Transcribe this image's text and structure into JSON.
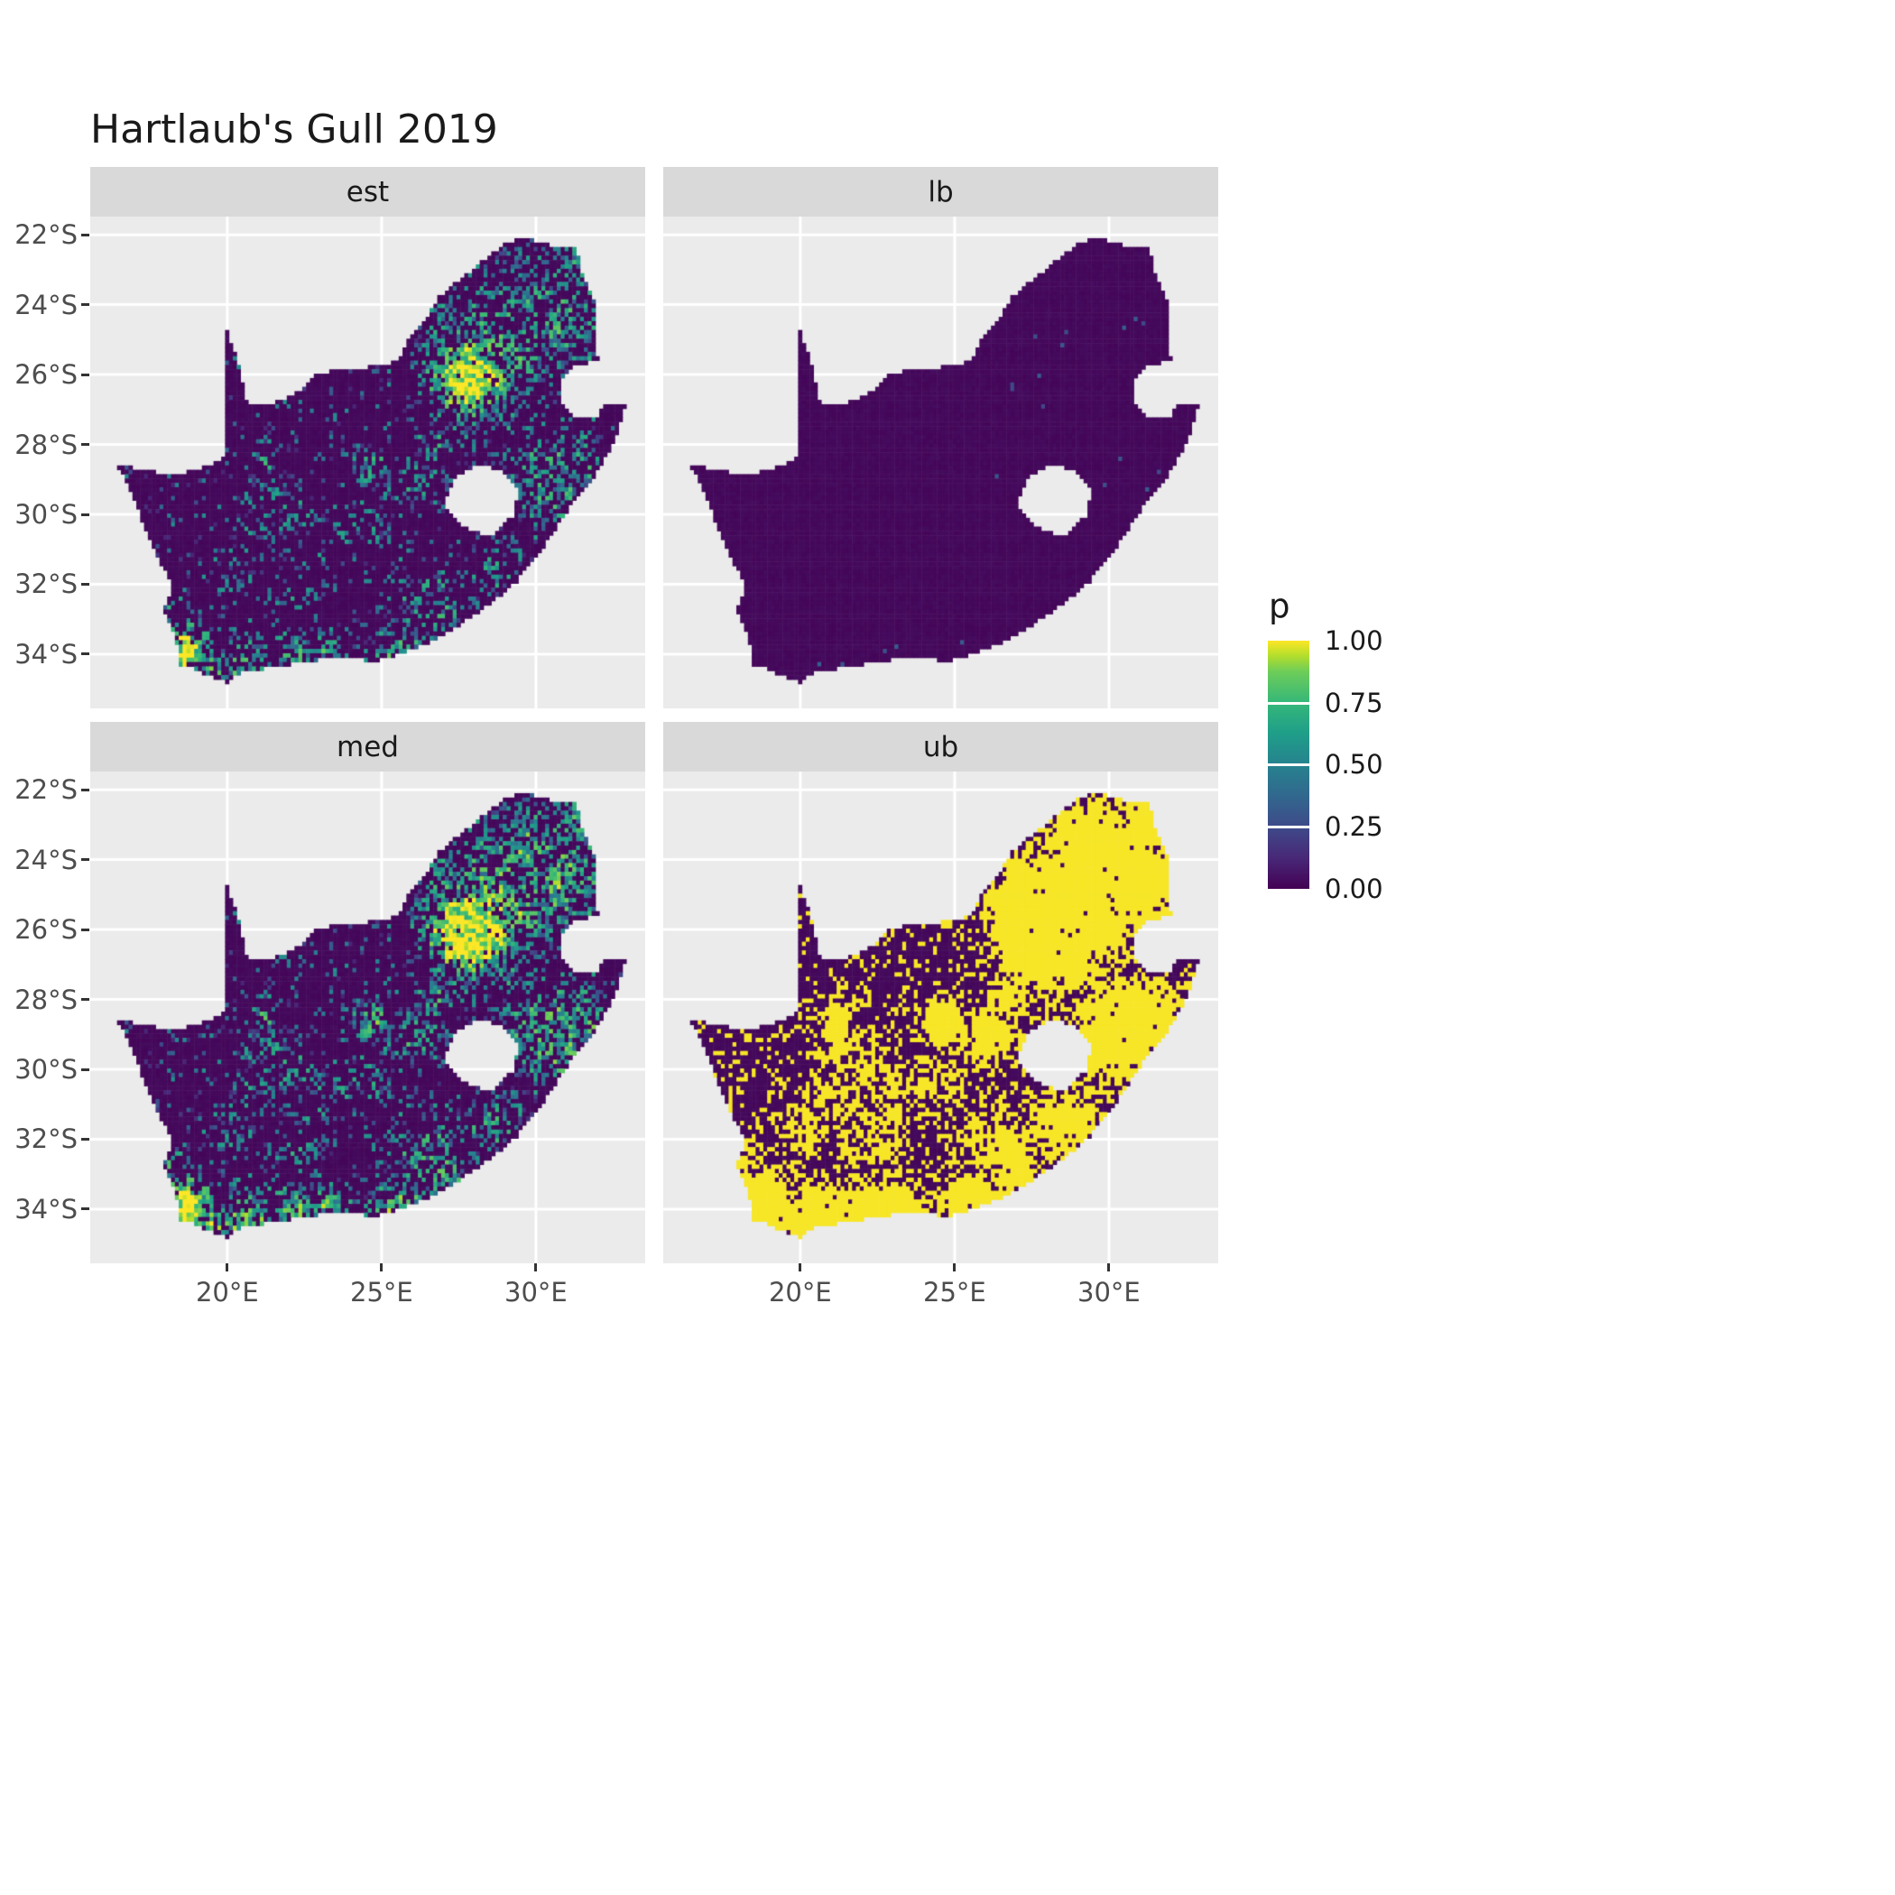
{
  "title": "Hartlaub's Gull 2019",
  "chart_data": {
    "type": "heatmap",
    "title": "Hartlaub's Gull 2019",
    "description": "Faceted raster maps of South Africa showing occupancy probability p (viridis scale) for four statistics: estimate, lower bound, median, upper bound.",
    "facets": [
      "est",
      "lb",
      "med",
      "ub"
    ],
    "legend": {
      "title": "p",
      "ticks": [
        "1.00",
        "0.75",
        "0.50",
        "0.25",
        "0.00"
      ],
      "tick_values": [
        1.0,
        0.75,
        0.5,
        0.25,
        0.0
      ]
    },
    "x_axis": {
      "ticks": [
        "20°E",
        "25°E",
        "30°E"
      ],
      "values": [
        20,
        25,
        30
      ],
      "range": [
        15.56,
        33.54
      ]
    },
    "y_axis": {
      "ticks": [
        "22°S",
        "24°S",
        "26°S",
        "28°S",
        "30°S",
        "32°S",
        "34°S"
      ],
      "values": [
        -22,
        -24,
        -26,
        -28,
        -30,
        -32,
        -34
      ],
      "range": [
        -35.55,
        -21.48
      ]
    },
    "colors": {
      "panel_bg": "#EBEBEB",
      "strip_bg": "#D9D9D9",
      "grid": "#FFFFFF",
      "axis_text": "#4D4D4D",
      "viridis": [
        [
          0,
          "#440154"
        ],
        [
          0.125,
          "#482878"
        ],
        [
          0.25,
          "#3E4A89"
        ],
        [
          0.375,
          "#31688E"
        ],
        [
          0.5,
          "#26828E"
        ],
        [
          0.625,
          "#1F9E89"
        ],
        [
          0.75,
          "#35B779"
        ],
        [
          0.875,
          "#6DCD59"
        ],
        [
          0.94,
          "#B4DE2C"
        ],
        [
          1,
          "#FDE725"
        ]
      ]
    },
    "region": {
      "name": "South Africa",
      "outline": [
        [
          16.45,
          -28.6
        ],
        [
          17.6,
          -28.78
        ],
        [
          18.3,
          -28.88
        ],
        [
          19.1,
          -28.72
        ],
        [
          19.7,
          -28.5
        ],
        [
          19.99,
          -28.32
        ],
        [
          19.99,
          -24.77
        ],
        [
          20.28,
          -25.45
        ],
        [
          20.48,
          -26.1
        ],
        [
          20.64,
          -26.82
        ],
        [
          21.45,
          -26.85
        ],
        [
          22.15,
          -26.6
        ],
        [
          22.9,
          -26.0
        ],
        [
          23.75,
          -25.85
        ],
        [
          24.7,
          -25.78
        ],
        [
          25.55,
          -25.62
        ],
        [
          25.95,
          -24.9
        ],
        [
          26.5,
          -24.3
        ],
        [
          26.9,
          -23.75
        ],
        [
          27.65,
          -23.2
        ],
        [
          28.35,
          -22.72
        ],
        [
          29.1,
          -22.18
        ],
        [
          29.75,
          -22.13
        ],
        [
          30.45,
          -22.3
        ],
        [
          31.3,
          -22.4
        ],
        [
          31.55,
          -23.25
        ],
        [
          31.9,
          -23.95
        ],
        [
          31.99,
          -24.65
        ],
        [
          31.95,
          -25.35
        ],
        [
          32.06,
          -25.63
        ],
        [
          31.25,
          -25.72
        ],
        [
          30.86,
          -26.15
        ],
        [
          30.82,
          -26.85
        ],
        [
          31.2,
          -27.22
        ],
        [
          31.97,
          -27.3
        ],
        [
          32.18,
          -26.86
        ],
        [
          32.9,
          -26.86
        ],
        [
          32.55,
          -27.95
        ],
        [
          31.85,
          -28.95
        ],
        [
          31.05,
          -29.87
        ],
        [
          30.25,
          -30.95
        ],
        [
          29.4,
          -31.9
        ],
        [
          28.45,
          -32.62
        ],
        [
          27.45,
          -33.2
        ],
        [
          26.45,
          -33.72
        ],
        [
          25.65,
          -33.98
        ],
        [
          24.85,
          -34.2
        ],
        [
          23.65,
          -34.1
        ],
        [
          22.55,
          -34.2
        ],
        [
          21.6,
          -34.4
        ],
        [
          20.55,
          -34.45
        ],
        [
          20.0,
          -34.82
        ],
        [
          19.35,
          -34.62
        ],
        [
          18.88,
          -34.36
        ],
        [
          18.4,
          -34.3
        ],
        [
          18.44,
          -33.92
        ],
        [
          18.25,
          -33.3
        ],
        [
          17.95,
          -32.75
        ],
        [
          18.25,
          -32.05
        ],
        [
          17.8,
          -31.3
        ],
        [
          17.3,
          -30.35
        ],
        [
          16.95,
          -29.45
        ]
      ],
      "hole": [
        [
          27.05,
          -29.7
        ],
        [
          27.35,
          -28.95
        ],
        [
          28.1,
          -28.58
        ],
        [
          28.95,
          -28.75
        ],
        [
          29.45,
          -29.35
        ],
        [
          29.25,
          -30.05
        ],
        [
          28.55,
          -30.62
        ],
        [
          27.8,
          -30.45
        ],
        [
          27.3,
          -30.1
        ]
      ]
    },
    "pattern": {
      "cell_deg": 0.125,
      "hotspots": [
        [
          27.9,
          -26.08,
          0.85,
          1.0
        ],
        [
          28.35,
          -25.3,
          1.3,
          0.5
        ],
        [
          29.6,
          -23.9,
          1.2,
          0.42
        ],
        [
          30.9,
          -24.6,
          1.0,
          0.45
        ],
        [
          29.3,
          -25.6,
          0.9,
          0.45
        ],
        [
          31.1,
          -23.0,
          0.7,
          0.35
        ],
        [
          30.6,
          -28.9,
          1.2,
          0.42
        ],
        [
          31.0,
          -29.85,
          0.5,
          0.55
        ],
        [
          32.0,
          -28.6,
          0.6,
          0.45
        ],
        [
          28.6,
          -31.5,
          0.7,
          0.35
        ],
        [
          18.6,
          -33.95,
          0.55,
          0.9
        ],
        [
          19.4,
          -34.5,
          0.5,
          0.6
        ],
        [
          20.6,
          -34.35,
          0.7,
          0.5
        ],
        [
          22.2,
          -34.05,
          0.6,
          0.5
        ],
        [
          23.3,
          -33.95,
          0.5,
          0.45
        ],
        [
          25.6,
          -33.9,
          0.55,
          0.55
        ],
        [
          27.0,
          -33.0,
          0.5,
          0.4
        ],
        [
          26.5,
          -32.3,
          0.9,
          0.3
        ],
        [
          24.8,
          -28.75,
          0.5,
          0.4
        ],
        [
          26.2,
          -29.1,
          0.5,
          0.42
        ],
        [
          26.75,
          -27.98,
          0.4,
          0.35
        ],
        [
          28.9,
          -26.9,
          0.7,
          0.35
        ],
        [
          21.25,
          -28.45,
          0.35,
          0.35
        ],
        [
          21.3,
          -29.4,
          0.5,
          0.26
        ],
        [
          22.2,
          -30.0,
          0.5,
          0.26
        ],
        [
          21.0,
          -30.8,
          0.5,
          0.26
        ],
        [
          23.0,
          -30.9,
          0.5,
          0.24
        ],
        [
          20.2,
          -31.8,
          0.5,
          0.26
        ],
        [
          22.3,
          -32.0,
          0.6,
          0.24
        ],
        [
          24.3,
          -30.4,
          0.6,
          0.22
        ],
        [
          18.0,
          -32.8,
          0.5,
          0.3
        ]
      ],
      "facet_params": {
        "est": {
          "seed": 1,
          "mult": 1.0,
          "floor": 0.07,
          "mode": "speckle"
        },
        "lb": {
          "seed": 2,
          "mult": 1.0,
          "floor": 0.0,
          "mode": "flat"
        },
        "med": {
          "seed": 1,
          "mult": 1.25,
          "floor": 0.09,
          "mode": "speckle"
        },
        "ub": {
          "seed": 1,
          "mult": 2.6,
          "floor": 0.17,
          "mode": "binary"
        }
      }
    }
  }
}
